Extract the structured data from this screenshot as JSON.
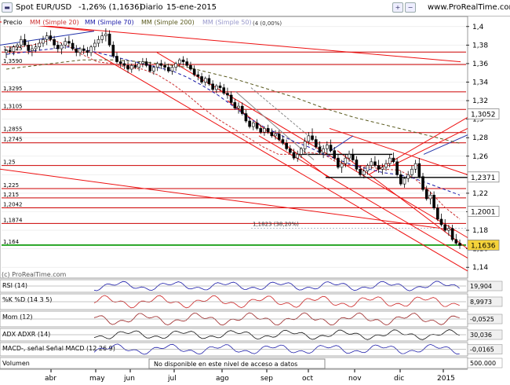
{
  "header": {
    "instrument": "Spot EUR/USD",
    "change": "-1,26% (1,1636)",
    "period": "Diario",
    "date": "15-ene-2015",
    "url": "www.ProRealTime.com"
  },
  "legend": {
    "price": "Precio",
    "ma20": "MM (Simple 20)",
    "ma70": "MM (Simple 70)",
    "ma200": "MM (Simple 200)",
    "ma50": "MM (Simple 50)"
  },
  "watermark": "(c) ProRealTime.com",
  "no_access": "No disponible en este nivel de acceso a datos",
  "colors": {
    "price": "#000000",
    "ma20": "#cc3333",
    "ma70": "#1a1aa8",
    "ma200": "#5a5a1e",
    "trendline": "#ee1111",
    "support": "#cc0000",
    "green_line": "#009900",
    "bg": "#ffffff",
    "grid": "#e6e6e6"
  },
  "chart_data": [
    {
      "type": "candlestick",
      "title": "Spot EUR/USD",
      "ylim": [
        1.13,
        1.41
      ],
      "yticks": [
        "1,4",
        "1,38",
        "1,36",
        "1,34",
        "1,32",
        "1,3",
        "1,28",
        "1,26",
        "1,24",
        "1,22",
        "1,2",
        "1,18",
        "1,16",
        "1,14"
      ],
      "xticks": [
        "abr",
        "may",
        "jun",
        "jul",
        "ago",
        "sep",
        "oct",
        "nov",
        "dic",
        "2015"
      ],
      "price_labels": [
        "1,3052",
        "1,2371",
        "1,2001",
        "1,1636"
      ],
      "left_levels": [
        {
          "label": "1,3725",
          "value": 1.3725
        },
        {
          "label": "1,3590",
          "value": 1.359
        },
        {
          "label": "1,3295",
          "value": 1.3295
        },
        {
          "label": "1,3105",
          "value": 1.3105
        },
        {
          "label": "1,2855",
          "value": 1.2855
        },
        {
          "label": "1,2745",
          "value": 1.2745
        },
        {
          "label": "1,25",
          "value": 1.25
        },
        {
          "label": "1,225",
          "value": 1.225
        },
        {
          "label": "1,215",
          "value": 1.215
        },
        {
          "label": "1,2042",
          "value": 1.2042
        },
        {
          "label": "1,1874",
          "value": 1.1874
        },
        {
          "label": "1,164",
          "value": 1.164
        }
      ],
      "annotations": [
        "1,1823 (38,20%)",
        "(4 (0,00%)"
      ],
      "series": [
        {
          "name": "MM (Simple 20)",
          "values": [
            1.378,
            1.378,
            1.381,
            1.386,
            1.38,
            1.37,
            1.362,
            1.36,
            1.356,
            1.354,
            1.348,
            1.338,
            1.326,
            1.312,
            1.3,
            1.29,
            1.28,
            1.27,
            1.262,
            1.262,
            1.264,
            1.262,
            1.252,
            1.25,
            1.248,
            1.246,
            1.245,
            1.236,
            1.222,
            1.205,
            1.192
          ]
        },
        {
          "name": "MM (Simple 70)",
          "values": [
            1.37,
            1.372,
            1.374,
            1.376,
            1.378,
            1.376,
            1.372,
            1.368,
            1.364,
            1.36,
            1.356,
            1.352,
            1.345,
            1.336,
            1.326,
            1.314,
            1.302,
            1.292,
            1.284,
            1.276,
            1.27,
            1.262,
            1.256,
            1.25,
            1.246,
            1.242,
            1.24,
            1.236,
            1.23,
            1.224,
            1.218
          ]
        },
        {
          "name": "MM (Simple 200)",
          "values": [
            1.354,
            1.356,
            1.358,
            1.36,
            1.362,
            1.364,
            1.364,
            1.364,
            1.363,
            1.362,
            1.36,
            1.358,
            1.356,
            1.352,
            1.348,
            1.344,
            1.339,
            1.334,
            1.329,
            1.324,
            1.318,
            1.312,
            1.307,
            1.302,
            1.298,
            1.294,
            1.29,
            1.286,
            1.282,
            1.278,
            1.274
          ]
        }
      ],
      "candles": [
        [
          1.372,
          1.376,
          1.366,
          1.374
        ],
        [
          1.374,
          1.378,
          1.37,
          1.373
        ],
        [
          1.373,
          1.38,
          1.369,
          1.378
        ],
        [
          1.378,
          1.382,
          1.374,
          1.38
        ],
        [
          1.38,
          1.39,
          1.376,
          1.386
        ],
        [
          1.386,
          1.392,
          1.378,
          1.38
        ],
        [
          1.38,
          1.384,
          1.37,
          1.374
        ],
        [
          1.374,
          1.38,
          1.368,
          1.376
        ],
        [
          1.376,
          1.382,
          1.372,
          1.378
        ],
        [
          1.378,
          1.386,
          1.374,
          1.382
        ],
        [
          1.382,
          1.39,
          1.378,
          1.386
        ],
        [
          1.386,
          1.394,
          1.38,
          1.39
        ],
        [
          1.39,
          1.396,
          1.384,
          1.386
        ],
        [
          1.386,
          1.39,
          1.376,
          1.38
        ],
        [
          1.38,
          1.384,
          1.372,
          1.376
        ],
        [
          1.376,
          1.382,
          1.37,
          1.38
        ],
        [
          1.38,
          1.388,
          1.376,
          1.384
        ],
        [
          1.384,
          1.39,
          1.378,
          1.382
        ],
        [
          1.382,
          1.386,
          1.374,
          1.376
        ],
        [
          1.376,
          1.38,
          1.368,
          1.372
        ],
        [
          1.372,
          1.378,
          1.368,
          1.376
        ],
        [
          1.376,
          1.38,
          1.37,
          1.374
        ],
        [
          1.374,
          1.378,
          1.368,
          1.372
        ],
        [
          1.372,
          1.38,
          1.368,
          1.378
        ],
        [
          1.378,
          1.386,
          1.374,
          1.382
        ],
        [
          1.382,
          1.39,
          1.378,
          1.386
        ],
        [
          1.386,
          1.394,
          1.382,
          1.39
        ],
        [
          1.39,
          1.398,
          1.384,
          1.392
        ],
        [
          1.392,
          1.396,
          1.378,
          1.38
        ],
        [
          1.38,
          1.384,
          1.366,
          1.368
        ],
        [
          1.368,
          1.372,
          1.36,
          1.362
        ],
        [
          1.362,
          1.366,
          1.356,
          1.36
        ],
        [
          1.36,
          1.364,
          1.354,
          1.358
        ],
        [
          1.358,
          1.362,
          1.35,
          1.354
        ],
        [
          1.354,
          1.36,
          1.35,
          1.358
        ],
        [
          1.358,
          1.362,
          1.354,
          1.356
        ],
        [
          1.356,
          1.362,
          1.352,
          1.36
        ],
        [
          1.36,
          1.366,
          1.356,
          1.362
        ],
        [
          1.362,
          1.366,
          1.356,
          1.358
        ],
        [
          1.358,
          1.362,
          1.35,
          1.352
        ],
        [
          1.352,
          1.358,
          1.348,
          1.356
        ],
        [
          1.356,
          1.362,
          1.352,
          1.36
        ],
        [
          1.36,
          1.364,
          1.354,
          1.358
        ],
        [
          1.358,
          1.362,
          1.352,
          1.356
        ],
        [
          1.356,
          1.36,
          1.35,
          1.352
        ],
        [
          1.352,
          1.358,
          1.348,
          1.356
        ],
        [
          1.356,
          1.362,
          1.352,
          1.36
        ],
        [
          1.36,
          1.366,
          1.356,
          1.364
        ],
        [
          1.364,
          1.368,
          1.358,
          1.362
        ],
        [
          1.362,
          1.366,
          1.356,
          1.358
        ],
        [
          1.358,
          1.362,
          1.352,
          1.354
        ],
        [
          1.354,
          1.358,
          1.346,
          1.348
        ],
        [
          1.348,
          1.352,
          1.342,
          1.346
        ],
        [
          1.346,
          1.35,
          1.338,
          1.34
        ],
        [
          1.34,
          1.346,
          1.336,
          1.344
        ],
        [
          1.344,
          1.348,
          1.336,
          1.338
        ],
        [
          1.338,
          1.342,
          1.33,
          1.332
        ],
        [
          1.332,
          1.338,
          1.328,
          1.336
        ],
        [
          1.336,
          1.34,
          1.33,
          1.334
        ],
        [
          1.334,
          1.338,
          1.326,
          1.328
        ],
        [
          1.328,
          1.334,
          1.322,
          1.326
        ],
        [
          1.326,
          1.33,
          1.316,
          1.318
        ],
        [
          1.318,
          1.322,
          1.31,
          1.312
        ],
        [
          1.312,
          1.318,
          1.306,
          1.314
        ],
        [
          1.314,
          1.318,
          1.304,
          1.306
        ],
        [
          1.306,
          1.31,
          1.296,
          1.298
        ],
        [
          1.298,
          1.302,
          1.29,
          1.292
        ],
        [
          1.292,
          1.298,
          1.288,
          1.296
        ],
        [
          1.296,
          1.3,
          1.288,
          1.29
        ],
        [
          1.29,
          1.294,
          1.284,
          1.286
        ],
        [
          1.286,
          1.292,
          1.282,
          1.29
        ],
        [
          1.29,
          1.294,
          1.284,
          1.286
        ],
        [
          1.286,
          1.29,
          1.28,
          1.282
        ],
        [
          1.282,
          1.288,
          1.278,
          1.284
        ],
        [
          1.284,
          1.288,
          1.276,
          1.278
        ],
        [
          1.278,
          1.282,
          1.272,
          1.274
        ],
        [
          1.274,
          1.278,
          1.266,
          1.268
        ],
        [
          1.268,
          1.272,
          1.262,
          1.264
        ],
        [
          1.264,
          1.268,
          1.256,
          1.258
        ],
        [
          1.258,
          1.266,
          1.254,
          1.262
        ],
        [
          1.262,
          1.27,
          1.258,
          1.268
        ],
        [
          1.268,
          1.28,
          1.264,
          1.276
        ],
        [
          1.276,
          1.286,
          1.272,
          1.282
        ],
        [
          1.282,
          1.29,
          1.276,
          1.278
        ],
        [
          1.278,
          1.282,
          1.268,
          1.27
        ],
        [
          1.27,
          1.276,
          1.262,
          1.264
        ],
        [
          1.264,
          1.272,
          1.258,
          1.268
        ],
        [
          1.268,
          1.276,
          1.262,
          1.272
        ],
        [
          1.272,
          1.278,
          1.264,
          1.266
        ],
        [
          1.266,
          1.27,
          1.256,
          1.258
        ],
        [
          1.258,
          1.262,
          1.246,
          1.248
        ],
        [
          1.248,
          1.256,
          1.242,
          1.252
        ],
        [
          1.252,
          1.262,
          1.248,
          1.258
        ],
        [
          1.258,
          1.266,
          1.254,
          1.262
        ],
        [
          1.262,
          1.268,
          1.254,
          1.256
        ],
        [
          1.256,
          1.26,
          1.244,
          1.246
        ],
        [
          1.246,
          1.25,
          1.238,
          1.24
        ],
        [
          1.24,
          1.248,
          1.236,
          1.244
        ],
        [
          1.244,
          1.252,
          1.24,
          1.25
        ],
        [
          1.25,
          1.258,
          1.246,
          1.254
        ],
        [
          1.254,
          1.26,
          1.248,
          1.25
        ],
        [
          1.25,
          1.256,
          1.242,
          1.246
        ],
        [
          1.246,
          1.252,
          1.24,
          1.248
        ],
        [
          1.248,
          1.256,
          1.244,
          1.252
        ],
        [
          1.252,
          1.262,
          1.248,
          1.258
        ],
        [
          1.258,
          1.264,
          1.252,
          1.254
        ],
        [
          1.254,
          1.258,
          1.238,
          1.24
        ],
        [
          1.24,
          1.244,
          1.228,
          1.23
        ],
        [
          1.23,
          1.238,
          1.226,
          1.236
        ],
        [
          1.236,
          1.244,
          1.232,
          1.24
        ],
        [
          1.24,
          1.25,
          1.236,
          1.246
        ],
        [
          1.246,
          1.256,
          1.242,
          1.252
        ],
        [
          1.252,
          1.258,
          1.236,
          1.238
        ],
        [
          1.238,
          1.242,
          1.222,
          1.224
        ],
        [
          1.224,
          1.228,
          1.212,
          1.214
        ],
        [
          1.214,
          1.222,
          1.208,
          1.218
        ],
        [
          1.218,
          1.222,
          1.202,
          1.204
        ],
        [
          1.204,
          1.208,
          1.19,
          1.192
        ],
        [
          1.192,
          1.198,
          1.184,
          1.186
        ],
        [
          1.186,
          1.192,
          1.178,
          1.18
        ],
        [
          1.18,
          1.186,
          1.174,
          1.182
        ],
        [
          1.182,
          1.186,
          1.168,
          1.17
        ],
        [
          1.17,
          1.176,
          1.164,
          1.166
        ],
        [
          1.166,
          1.17,
          1.16,
          1.1636
        ]
      ]
    },
    {
      "type": "line",
      "title": "RSI (14)",
      "value_label": "19,904"
    },
    {
      "type": "line",
      "title": "%K %D (14 3 5)",
      "value_label": "8,9973",
      "series": [
        {
          "name": "%K"
        },
        {
          "name": "%D"
        }
      ]
    },
    {
      "type": "bar",
      "title": "Mom (12)",
      "value_label": "-0,0525"
    },
    {
      "type": "line",
      "title": "ADX ADXR (14)",
      "value_label": "30,036",
      "series": [
        {
          "name": "ADX"
        },
        {
          "name": "ADXR"
        }
      ]
    },
    {
      "type": "line",
      "title": "MACD-, señal Señal MACD (12 26 9)",
      "value_label": "-0,0165"
    },
    {
      "type": "bar",
      "title": "Volumen",
      "value_label": "500.000"
    }
  ]
}
